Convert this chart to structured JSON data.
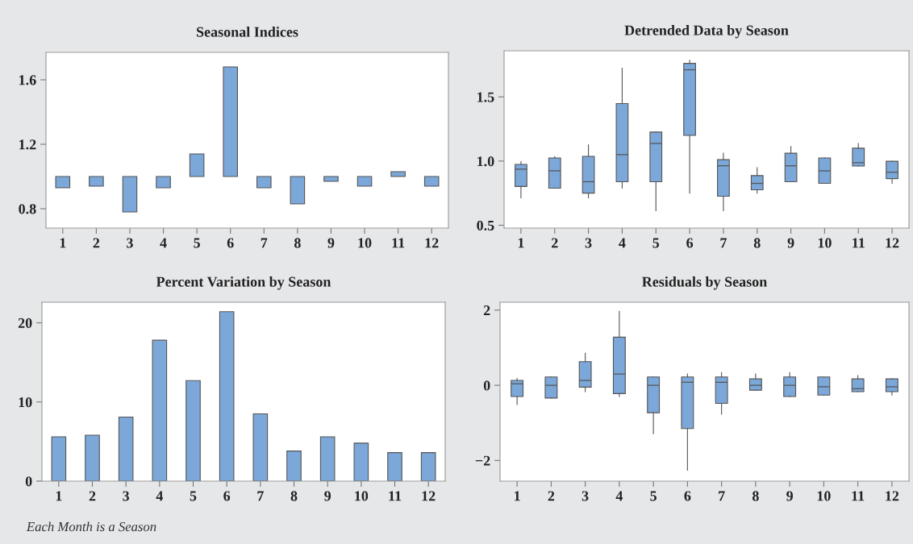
{
  "chart_data": [
    {
      "type": "bar",
      "title": "Seasonal Indices",
      "categories": [
        "1",
        "2",
        "3",
        "4",
        "5",
        "6",
        "7",
        "8",
        "9",
        "10",
        "11",
        "12"
      ],
      "base": [
        1,
        1,
        1,
        1,
        1,
        1,
        1,
        1,
        1,
        1,
        1,
        1
      ],
      "values": [
        -0.07,
        -0.06,
        -0.22,
        -0.07,
        0.14,
        0.68,
        -0.07,
        -0.17,
        -0.03,
        -0.06,
        0.03,
        -0.06
      ],
      "color": "#7ba7d9",
      "ylim": [
        0.68,
        1.77
      ],
      "yticks": [
        0.8,
        1.2,
        1.6
      ],
      "grid": false
    },
    {
      "type": "box",
      "title": "Detrended Data by Season",
      "categories": [
        "1",
        "2",
        "3",
        "4",
        "5",
        "6",
        "7",
        "8",
        "9",
        "10",
        "11",
        "12"
      ],
      "color": "#7ba7d9",
      "boxes": [
        {
          "low": 0.713,
          "q1": 0.802,
          "median": 0.937,
          "q3": 0.974,
          "high": 0.996
        },
        {
          "low": 0.789,
          "q1": 0.789,
          "median": 0.924,
          "q3": 1.024,
          "high": 1.035
        },
        {
          "low": 0.713,
          "q1": 0.75,
          "median": 0.839,
          "q3": 1.037,
          "high": 1.126
        },
        {
          "low": 0.789,
          "q1": 0.839,
          "median": 1.05,
          "q3": 1.448,
          "high": 1.724
        },
        {
          "low": 0.613,
          "q1": 0.839,
          "median": 1.137,
          "q3": 1.226,
          "high": 1.226
        },
        {
          "low": 0.75,
          "q1": 1.2,
          "median": 1.711,
          "q3": 1.761,
          "high": 1.785
        },
        {
          "low": 0.613,
          "q1": 0.726,
          "median": 0.963,
          "q3": 1.011,
          "high": 1.061
        },
        {
          "low": 0.75,
          "q1": 0.776,
          "median": 0.826,
          "q3": 0.887,
          "high": 0.948
        },
        {
          "low": 0.839,
          "q1": 0.839,
          "median": 0.963,
          "q3": 1.061,
          "high": 1.113
        },
        {
          "low": 0.826,
          "q1": 0.826,
          "median": 0.924,
          "q3": 1.024,
          "high": 1.024
        },
        {
          "low": 0.961,
          "q1": 0.961,
          "median": 0.987,
          "q3": 1.1,
          "high": 1.137
        },
        {
          "low": 0.826,
          "q1": 0.863,
          "median": 0.913,
          "q3": 0.998,
          "high": 0.998
        }
      ],
      "ylim": [
        0.478,
        1.859
      ],
      "yticks": [
        0.5,
        {
          "value": 1.0,
          "label": "1.0"
        },
        1.5
      ],
      "grid": false
    },
    {
      "type": "bar",
      "title": "Percent Variation by Season",
      "categories": [
        "1",
        "2",
        "3",
        "4",
        "5",
        "6",
        "7",
        "8",
        "9",
        "10",
        "11",
        "12"
      ],
      "values": [
        5.6,
        5.8,
        8.1,
        17.8,
        12.7,
        21.4,
        8.5,
        3.8,
        5.6,
        4.8,
        3.6,
        3.6
      ],
      "color": "#7ba7d9",
      "ylim": [
        0,
        22.6
      ],
      "yticks": [
        0,
        10,
        20
      ],
      "grid": false,
      "annotations": [
        "Each Month is a Season"
      ]
    },
    {
      "type": "box",
      "title": "Residuals by Season",
      "categories": [
        "1",
        "2",
        "3",
        "4",
        "5",
        "6",
        "7",
        "8",
        "9",
        "10",
        "11",
        "12"
      ],
      "color": "#7ba7d9",
      "boxes": [
        {
          "low": -0.51,
          "q1": -0.3,
          "median": 0.04,
          "q3": 0.13,
          "high": 0.18
        },
        {
          "low": -0.34,
          "q1": -0.34,
          "median": 0,
          "q3": 0.22,
          "high": 0.22
        },
        {
          "low": -0.17,
          "q1": -0.05,
          "median": 0.13,
          "q3": 0.63,
          "high": 0.85
        },
        {
          "low": -0.3,
          "q1": -0.22,
          "median": 0.3,
          "q3": 1.28,
          "high": 1.97
        },
        {
          "low": -1.29,
          "q1": -0.73,
          "median": 0,
          "q3": 0.22,
          "high": 0.22
        },
        {
          "low": -2.26,
          "q1": -1.15,
          "median": 0.08,
          "q3": 0.22,
          "high": 0.3
        },
        {
          "low": -0.77,
          "q1": -0.48,
          "median": 0.08,
          "q3": 0.22,
          "high": 0.34
        },
        {
          "low": -0.13,
          "q1": -0.13,
          "median": 0,
          "q3": 0.17,
          "high": 0.3
        },
        {
          "low": -0.3,
          "q1": -0.3,
          "median": 0,
          "q3": 0.22,
          "high": 0.34
        },
        {
          "low": -0.26,
          "q1": -0.26,
          "median": -0.04,
          "q3": 0.22,
          "high": 0.22
        },
        {
          "low": -0.17,
          "q1": -0.17,
          "median": -0.09,
          "q3": 0.17,
          "high": 0.26
        },
        {
          "low": -0.26,
          "q1": -0.17,
          "median": -0.04,
          "q3": 0.17,
          "high": 0.17
        }
      ],
      "ylim": [
        -2.55,
        2.21
      ],
      "yticks": [
        {
          "value": -2,
          "label": "−2"
        },
        0,
        2
      ],
      "grid": false
    }
  ]
}
